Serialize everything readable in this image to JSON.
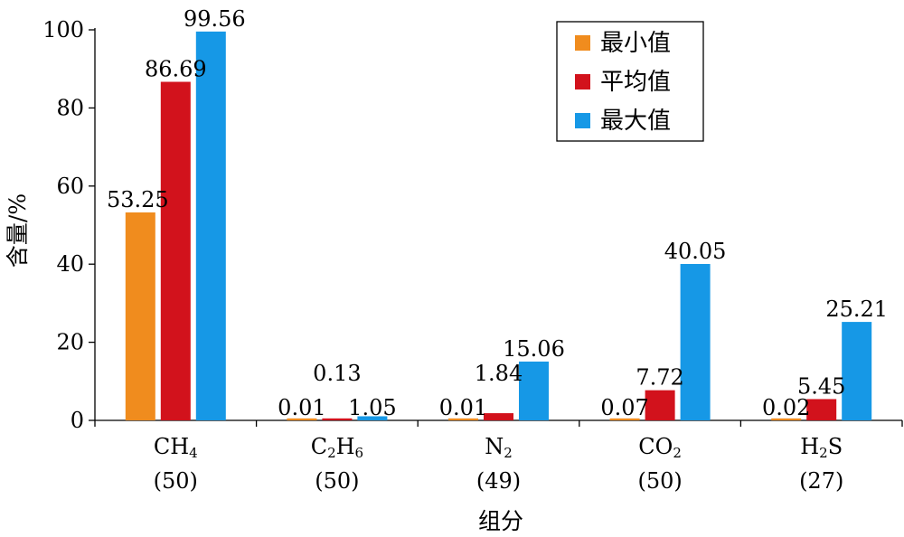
{
  "chart_data": {
    "type": "bar",
    "xlabel": "组分",
    "ylabel": "含量/%",
    "ylim": [
      0,
      100
    ],
    "yticks": [
      0,
      20,
      40,
      60,
      80,
      100
    ],
    "categories": [
      {
        "formula": [
          [
            "C",
            ""
          ],
          [
            "H",
            ""
          ],
          [
            "4",
            "sub"
          ]
        ],
        "count": "(50)"
      },
      {
        "formula": [
          [
            "C",
            ""
          ],
          [
            "2",
            "sub"
          ],
          [
            "H",
            ""
          ],
          [
            "6",
            "sub"
          ]
        ],
        "count": "(50)"
      },
      {
        "formula": [
          [
            "N",
            ""
          ],
          [
            "2",
            "sub"
          ]
        ],
        "count": "(49)"
      },
      {
        "formula": [
          [
            "CO",
            ""
          ],
          [
            "2",
            "sub"
          ]
        ],
        "count": "(50)"
      },
      {
        "formula": [
          [
            "H",
            ""
          ],
          [
            "2",
            "sub"
          ],
          [
            "S",
            ""
          ]
        ],
        "count": "(27)"
      }
    ],
    "series": [
      {
        "name": "最小值",
        "color": "#F08C1E",
        "values": [
          53.25,
          0.01,
          0.01,
          0.07,
          0.02
        ],
        "labels": [
          "53.25",
          "0.01",
          "0.01",
          "0.07",
          "0.02"
        ]
      },
      {
        "name": "平均值",
        "color": "#D2121C",
        "values": [
          86.69,
          0.13,
          1.84,
          7.72,
          5.45
        ],
        "labels": [
          "86.69",
          "0.13",
          "1.84",
          "7.72",
          "5.45"
        ]
      },
      {
        "name": "最大值",
        "color": "#1698E6",
        "values": [
          99.56,
          1.05,
          15.06,
          40.05,
          25.21
        ],
        "labels": [
          "99.56",
          "1.05",
          "15.06",
          "40.05",
          "25.21"
        ]
      }
    ],
    "legend_position": "top-right",
    "grid": false
  }
}
